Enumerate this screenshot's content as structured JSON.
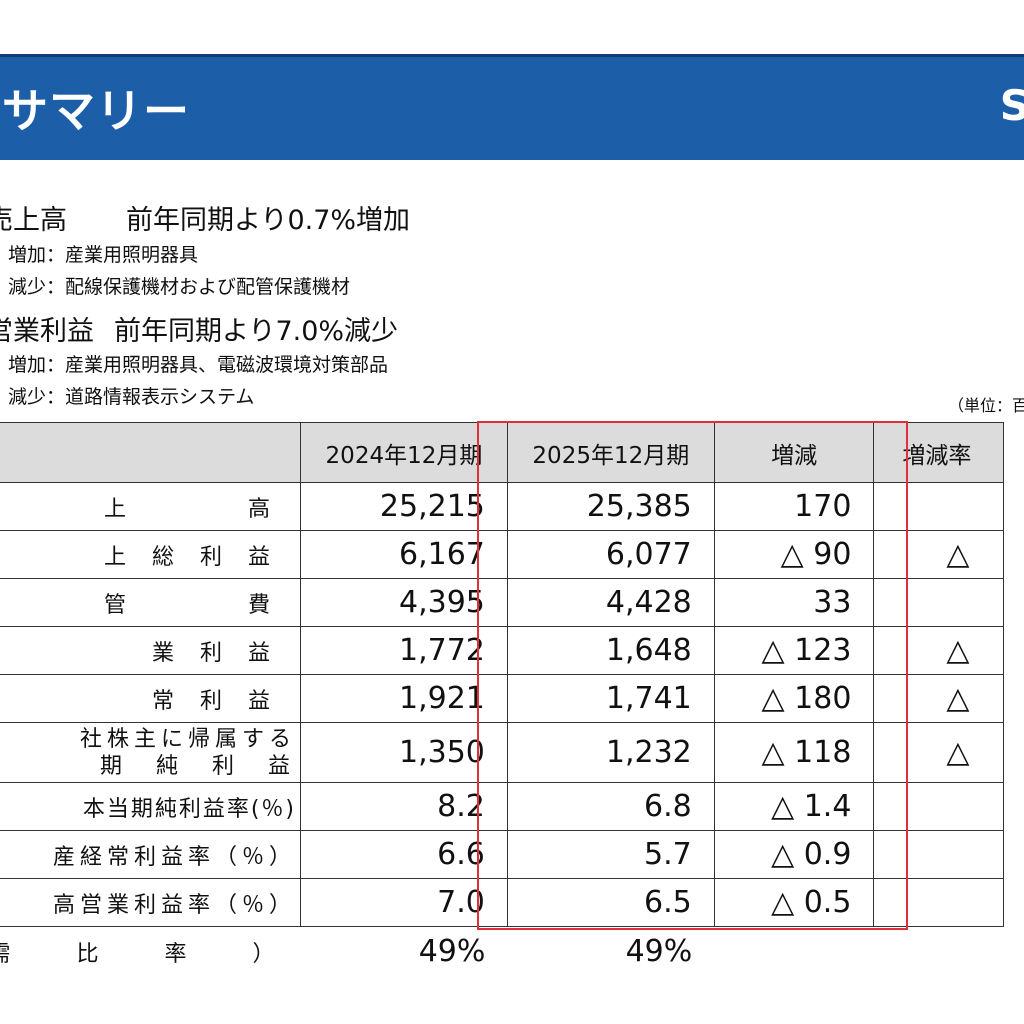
{
  "banner": {
    "title": "サマリー",
    "code_fragment": "S"
  },
  "sales": {
    "label": "売上高",
    "summary": "前年同期より0.7%増加",
    "increase": "増加：産業用照明器具",
    "decrease": "減少：配線保護機材および配管保護機材"
  },
  "operating_income": {
    "label": "営業利益",
    "summary": "前年同期より7.0%減少",
    "increase": "増加：産業用照明器具、電磁波環境対策部品",
    "decrease": "減少：道路情報表示システム"
  },
  "unit_note": "（単位：百",
  "table": {
    "headers": [
      "2024年12月期",
      "2025年12月期",
      "増減",
      "増減率"
    ],
    "rows": [
      {
        "item": "上　　高",
        "fy2024": "25,215",
        "fy2025": "25,385",
        "change": "170",
        "rate": ""
      },
      {
        "item": "上総利益",
        "fy2024": "6,167",
        "fy2025": "6,077",
        "change": "△ 90",
        "rate": "△"
      },
      {
        "item": "管　　費",
        "fy2024": "4,395",
        "fy2025": "4,428",
        "change": "33",
        "rate": ""
      },
      {
        "item": "業利益",
        "fy2024": "1,772",
        "fy2025": "1,648",
        "change": "△ 123",
        "rate": "△"
      },
      {
        "item": "常利益",
        "fy2024": "1,921",
        "fy2025": "1,741",
        "change": "△ 180",
        "rate": "△"
      },
      {
        "item_line1": "社株主に帰属する",
        "item_line2": "期　純　利　益",
        "fy2024": "1,350",
        "fy2025": "1,232",
        "change": "△ 118",
        "rate": "△"
      },
      {
        "item": "本当期純利益率(％)",
        "fy2024": "8.2",
        "fy2025": "6.8",
        "change": "△ 1.4",
        "rate": ""
      },
      {
        "item": "産経常利益率（％）",
        "fy2024": "6.6",
        "fy2025": "5.7",
        "change": "△ 0.9",
        "rate": ""
      },
      {
        "item": "高営業利益率（％）",
        "fy2024": "7.0",
        "fy2025": "6.5",
        "change": "△ 0.5",
        "rate": ""
      }
    ],
    "footer": {
      "item": "需　比　率　）",
      "fy2024": "49%",
      "fy2025": "49%"
    }
  }
}
